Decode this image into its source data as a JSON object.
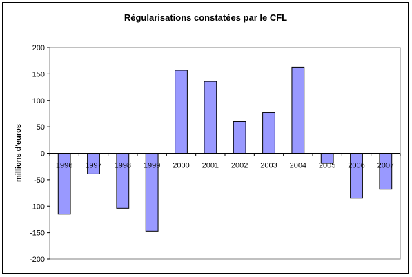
{
  "chart_data": {
    "type": "bar",
    "title": "Régularisations constatées par le CFL",
    "xlabel": "",
    "ylabel": "millions d'euros",
    "categories": [
      "1996",
      "1997",
      "1998",
      "1999",
      "2000",
      "2001",
      "2002",
      "2003",
      "2004",
      "2005",
      "2006",
      "2007"
    ],
    "values": [
      -115,
      -39,
      -104,
      -147,
      157,
      136,
      60,
      77,
      163,
      -19,
      -85,
      -68
    ],
    "ylim": [
      -200,
      200
    ],
    "yticks": [
      200,
      150,
      100,
      50,
      0,
      -50,
      -100,
      -150,
      -200
    ],
    "grid": false,
    "legend": "none",
    "colors": {
      "bar_fill": "#9999ff",
      "bar_stroke": "#000000",
      "plot_border": "#808080"
    }
  }
}
